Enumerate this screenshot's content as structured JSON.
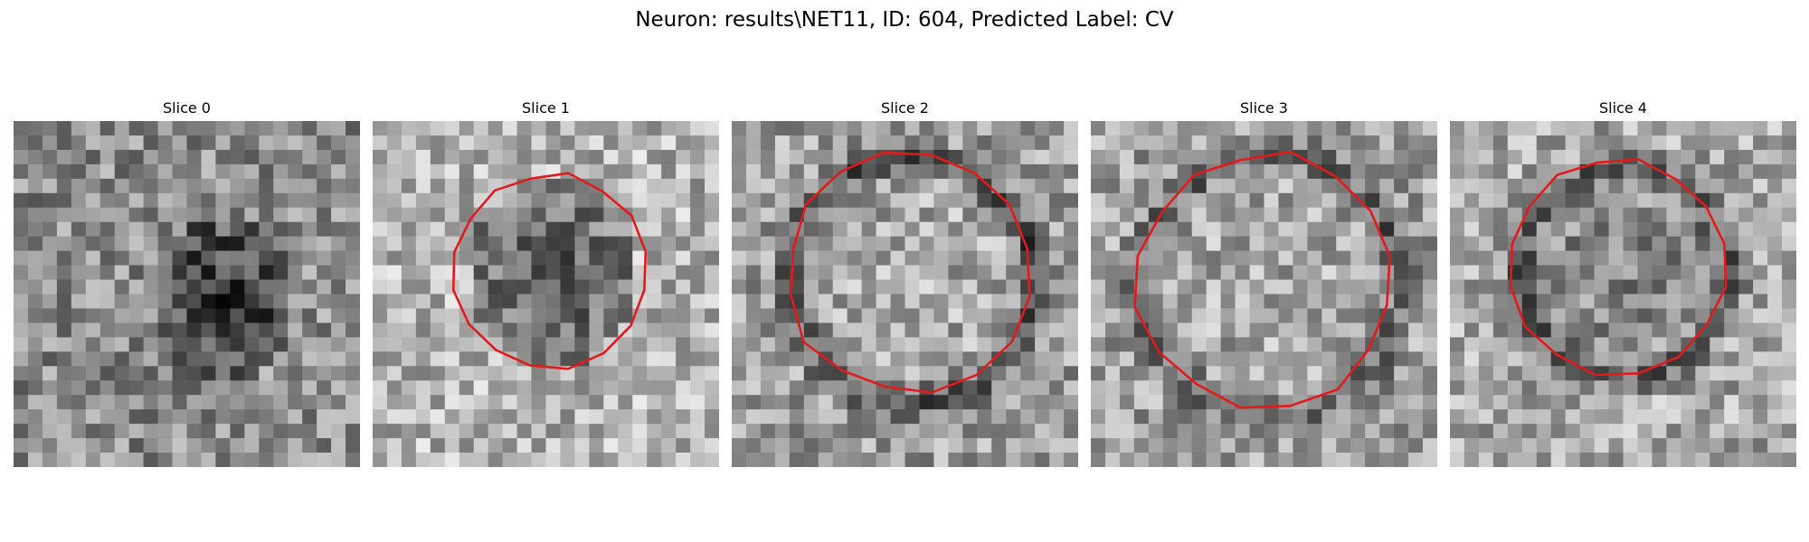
{
  "figure": {
    "title": "Neuron: results\\NET11, ID: 604, Predicted Label: CV"
  },
  "contour_color": "#e31a1c",
  "colormap": "gray",
  "slices": [
    {
      "title": "Slice 0",
      "has_contour": false
    },
    {
      "title": "Slice 1",
      "has_contour": true
    },
    {
      "title": "Slice 2",
      "has_contour": true
    },
    {
      "title": "Slice 3",
      "has_contour": true
    },
    {
      "title": "Slice 4",
      "has_contour": true
    }
  ]
}
